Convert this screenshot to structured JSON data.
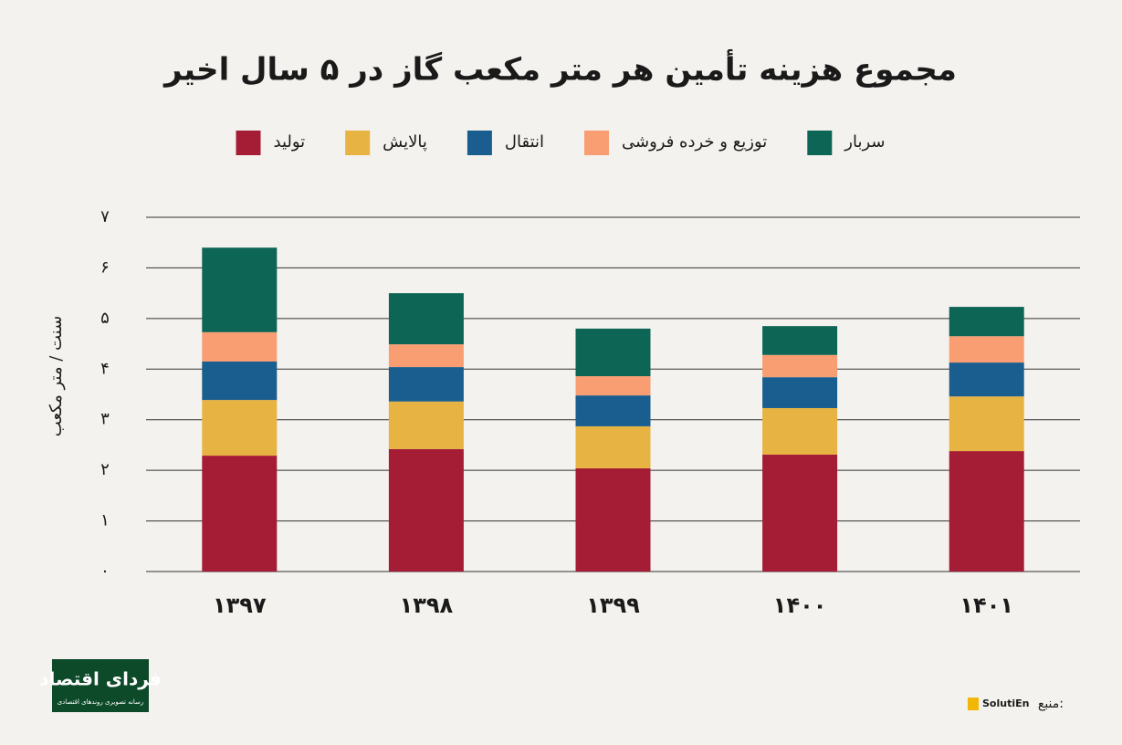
{
  "chart_data": {
    "type": "stacked_bar",
    "title": "مجموع هزینه تأمین هر متر مکعب گاز در ۵ سال اخیر",
    "y_label": "سنت / متر مکعب",
    "categories": [
      "۱۳۹۷",
      "۱۳۹۸",
      "۱۳۹۹",
      "۱۴۰۰",
      "۱۴۰۱"
    ],
    "series": [
      {
        "name": "تولید",
        "color": "#a51d35",
        "values": [
          2.29,
          2.42,
          2.04,
          2.31,
          2.38
        ]
      },
      {
        "name": "پالایش",
        "color": "#e7b342",
        "values": [
          1.1,
          0.94,
          0.83,
          0.92,
          1.08
        ]
      },
      {
        "name": "انتقال",
        "color": "#1a5e8f",
        "values": [
          0.76,
          0.68,
          0.61,
          0.61,
          0.67
        ]
      },
      {
        "name": "توزیع و خرده فروشی",
        "color": "#f99e72",
        "values": [
          0.58,
          0.45,
          0.38,
          0.44,
          0.52
        ]
      },
      {
        "name": "سربار",
        "color": "#0c6555",
        "values": [
          1.67,
          1.01,
          0.94,
          0.57,
          0.58
        ]
      }
    ],
    "ylim": [
      0,
      7
    ],
    "yticks": [
      {
        "value": 0,
        "label": "۰"
      },
      {
        "value": 1,
        "label": "۱"
      },
      {
        "value": 2,
        "label": "۲"
      },
      {
        "value": 3,
        "label": "۳"
      },
      {
        "value": 4,
        "label": "۴"
      },
      {
        "value": 5,
        "label": "۵"
      },
      {
        "value": 6,
        "label": "۶"
      },
      {
        "value": 7,
        "label": "۷"
      }
    ],
    "grid": true
  },
  "footer": {
    "logo_title": "فردای اقتصاد",
    "logo_subtitle": "رسانه تصویری روندهای اقتصادی",
    "source_label": "منبع:",
    "source_name": "SolutiEn"
  }
}
